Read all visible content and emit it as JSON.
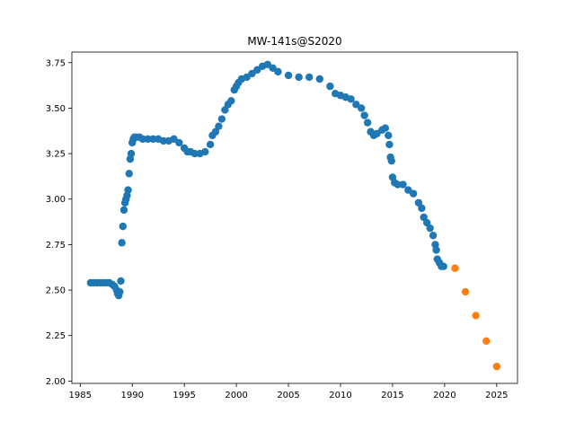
{
  "chart_data": {
    "type": "scatter",
    "title": "MW-141s@S2020",
    "xlabel": "",
    "ylabel": "",
    "xlim": [
      1984.2,
      2027.0
    ],
    "ylim": [
      1.987,
      3.808
    ],
    "xticks": [
      1985,
      1990,
      1995,
      2000,
      2005,
      2010,
      2015,
      2020,
      2025
    ],
    "yticks": [
      2.0,
      2.25,
      2.5,
      2.75,
      3.0,
      3.25,
      3.5,
      3.75
    ],
    "grid": false,
    "legend": "none",
    "series": [
      {
        "color": "#1f77b4",
        "x": [
          1986.0,
          1986.3,
          1986.6,
          1986.9,
          1987.2,
          1987.5,
          1987.8,
          1988.1,
          1988.3,
          1988.5,
          1988.6,
          1988.7,
          1988.8,
          1988.9,
          1989.0,
          1989.1,
          1989.2,
          1989.3,
          1989.4,
          1989.5,
          1989.6,
          1989.7,
          1989.8,
          1989.9,
          1990.0,
          1990.1,
          1990.2,
          1990.4,
          1990.7,
          1991.0,
          1991.5,
          1992.0,
          1992.5,
          1993.0,
          1993.5,
          1994.0,
          1994.5,
          1995.0,
          1995.3,
          1995.6,
          1996.0,
          1996.5,
          1997.0,
          1997.5,
          1997.7,
          1998.0,
          1998.3,
          1998.6,
          1998.9,
          1999.2,
          1999.5,
          1999.8,
          2000.0,
          2000.2,
          2000.5,
          2001.0,
          2001.5,
          2002.0,
          2002.5,
          2003.0,
          2003.5,
          2004.0,
          2005.0,
          2006.0,
          2007.0,
          2008.0,
          2009.0,
          2009.5,
          2010.0,
          2010.5,
          2011.0,
          2011.5,
          2012.0,
          2012.3,
          2012.6,
          2012.9,
          2013.2,
          2013.5,
          2014.0,
          2014.3,
          2014.6,
          2014.7,
          2014.8,
          2014.9,
          2015.0,
          2015.2,
          2015.5,
          2016.0,
          2016.5,
          2017.0,
          2017.5,
          2017.8,
          2018.0,
          2018.3,
          2018.6,
          2018.9,
          2019.1,
          2019.2,
          2019.3,
          2019.5,
          2019.7,
          2019.9
        ],
        "y": [
          2.54,
          2.54,
          2.54,
          2.54,
          2.54,
          2.54,
          2.54,
          2.53,
          2.52,
          2.5,
          2.48,
          2.47,
          2.49,
          2.55,
          2.76,
          2.85,
          2.94,
          2.98,
          3.0,
          3.02,
          3.05,
          3.14,
          3.22,
          3.25,
          3.31,
          3.33,
          3.34,
          3.34,
          3.34,
          3.33,
          3.33,
          3.33,
          3.33,
          3.32,
          3.32,
          3.33,
          3.31,
          3.28,
          3.26,
          3.26,
          3.25,
          3.25,
          3.26,
          3.3,
          3.35,
          3.37,
          3.4,
          3.44,
          3.49,
          3.52,
          3.54,
          3.6,
          3.62,
          3.64,
          3.66,
          3.67,
          3.69,
          3.71,
          3.73,
          3.74,
          3.72,
          3.7,
          3.68,
          3.67,
          3.67,
          3.66,
          3.62,
          3.58,
          3.57,
          3.56,
          3.55,
          3.52,
          3.5,
          3.46,
          3.42,
          3.37,
          3.35,
          3.36,
          3.38,
          3.39,
          3.35,
          3.3,
          3.23,
          3.21,
          3.12,
          3.09,
          3.08,
          3.08,
          3.05,
          3.03,
          2.98,
          2.95,
          2.9,
          2.87,
          2.84,
          2.8,
          2.75,
          2.72,
          2.67,
          2.65,
          2.63,
          2.63
        ]
      },
      {
        "color": "#ff7f0e",
        "x": [
          2021,
          2022,
          2023,
          2024,
          2025
        ],
        "y": [
          2.62,
          2.49,
          2.36,
          2.22,
          2.08
        ]
      }
    ]
  }
}
